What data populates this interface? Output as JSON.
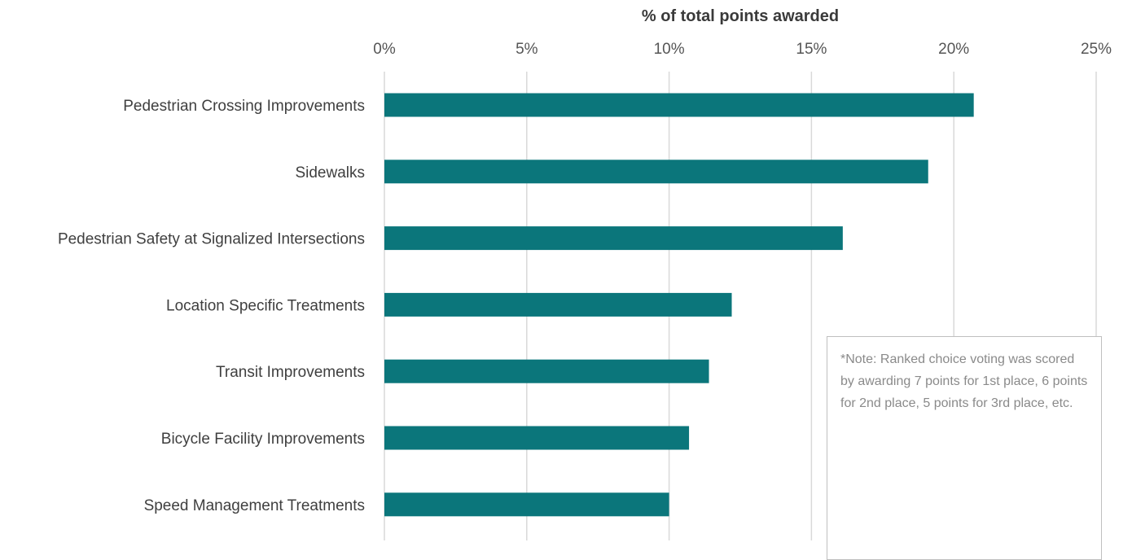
{
  "chart_data": {
    "type": "bar",
    "orientation": "horizontal",
    "xlabel": "% of total points awarded",
    "xlim": [
      0,
      25
    ],
    "x_ticks": [
      "0%",
      "5%",
      "10%",
      "15%",
      "20%",
      "25%"
    ],
    "x_tick_values": [
      0,
      5,
      10,
      15,
      20,
      25
    ],
    "categories": [
      "Pedestrian Crossing Improvements",
      "Sidewalks",
      "Pedestrian Safety at Signalized Intersections",
      "Location Specific Treatments",
      "Transit Improvements",
      "Bicycle Facility Improvements",
      "Speed Management Treatments"
    ],
    "values": [
      20.7,
      19.1,
      16.1,
      12.2,
      11.4,
      10.7,
      10.0
    ],
    "bar_color": "#0b767b",
    "grid": true,
    "axis_position": "top"
  },
  "note": {
    "text": "*Note: Ranked choice voting was scored by awarding 7 points for 1st place, 6 points for 2nd place, 5 points for 3rd place, etc."
  }
}
